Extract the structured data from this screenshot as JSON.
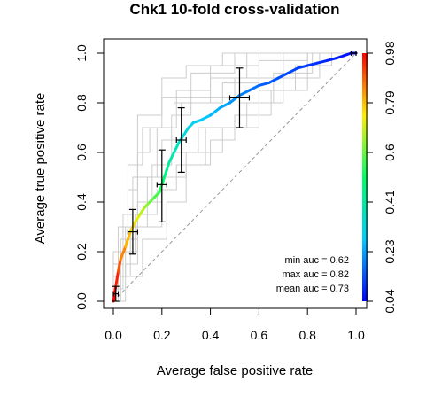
{
  "chart_data": {
    "type": "line",
    "title": "Chk1 10-fold cross-validation",
    "xlabel": "Average false positive rate",
    "ylabel": "Average true positive rate",
    "xlim": [
      0,
      1
    ],
    "ylim": [
      0,
      1
    ],
    "xticks": [
      "0.0",
      "0.2",
      "0.4",
      "0.6",
      "0.8",
      "1.0"
    ],
    "yticks": [
      "0.0",
      "0.2",
      "0.4",
      "0.6",
      "0.8",
      "1.0"
    ],
    "colorbar_ticks": [
      "0.04",
      "0.23",
      "0.41",
      "0.6",
      "0.79",
      "0.98"
    ],
    "colorbar_range": [
      0.04,
      0.98
    ],
    "annotations": [
      "min auc = 0.62",
      "max auc = 0.82",
      "mean auc = 0.73"
    ],
    "diagonal_reference": true,
    "colors": {
      "fold_curves": "#cccccc",
      "diagonal": "#999999",
      "error_bars": "#000000"
    },
    "average_curve": {
      "x": [
        0.0,
        0.01,
        0.02,
        0.03,
        0.05,
        0.07,
        0.09,
        0.11,
        0.13,
        0.15,
        0.17,
        0.19,
        0.2,
        0.21,
        0.22,
        0.23,
        0.25,
        0.27,
        0.29,
        0.31,
        0.33,
        0.36,
        0.4,
        0.44,
        0.48,
        0.52,
        0.56,
        0.6,
        0.64,
        0.68,
        0.72,
        0.76,
        0.8,
        0.84,
        0.88,
        0.92,
        0.95,
        0.98,
        1.0
      ],
      "y": [
        0.0,
        0.06,
        0.12,
        0.17,
        0.22,
        0.28,
        0.32,
        0.35,
        0.38,
        0.4,
        0.42,
        0.44,
        0.47,
        0.5,
        0.53,
        0.56,
        0.6,
        0.64,
        0.67,
        0.7,
        0.72,
        0.73,
        0.75,
        0.78,
        0.8,
        0.83,
        0.85,
        0.87,
        0.88,
        0.9,
        0.92,
        0.94,
        0.95,
        0.96,
        0.97,
        0.98,
        0.99,
        1.0,
        1.0
      ],
      "cutoff": [
        0.98,
        0.95,
        0.9,
        0.85,
        0.8,
        0.76,
        0.72,
        0.68,
        0.64,
        0.6,
        0.57,
        0.54,
        0.5,
        0.47,
        0.44,
        0.41,
        0.38,
        0.35,
        0.33,
        0.31,
        0.29,
        0.27,
        0.25,
        0.23,
        0.21,
        0.19,
        0.17,
        0.15,
        0.14,
        0.13,
        0.12,
        0.11,
        0.1,
        0.09,
        0.08,
        0.07,
        0.06,
        0.05,
        0.04
      ]
    },
    "error_bars": [
      {
        "x": 0.01,
        "y": 0.03,
        "ylo": 0.0,
        "yhi": 0.06,
        "xlo": 0.0,
        "xhi": 0.02
      },
      {
        "x": 0.08,
        "y": 0.28,
        "ylo": 0.19,
        "yhi": 0.37,
        "xlo": 0.06,
        "xhi": 0.1
      },
      {
        "x": 0.2,
        "y": 0.47,
        "ylo": 0.32,
        "yhi": 0.61,
        "xlo": 0.18,
        "xhi": 0.22
      },
      {
        "x": 0.28,
        "y": 0.65,
        "ylo": 0.52,
        "yhi": 0.78,
        "xlo": 0.26,
        "xhi": 0.3
      },
      {
        "x": 0.52,
        "y": 0.82,
        "ylo": 0.7,
        "yhi": 0.94,
        "xlo": 0.48,
        "xhi": 0.56
      },
      {
        "x": 0.99,
        "y": 1.0,
        "ylo": 1.0,
        "yhi": 1.0,
        "xlo": 0.98,
        "xhi": 1.0
      }
    ],
    "fold_curves": [
      {
        "points": [
          [
            0,
            0
          ],
          [
            0,
            0.1
          ],
          [
            0.05,
            0.1
          ],
          [
            0.05,
            0.3
          ],
          [
            0.1,
            0.3
          ],
          [
            0.1,
            0.6
          ],
          [
            0.15,
            0.6
          ],
          [
            0.15,
            0.7
          ],
          [
            0.25,
            0.7
          ],
          [
            0.25,
            0.8
          ],
          [
            0.4,
            0.8
          ],
          [
            0.4,
            0.9
          ],
          [
            0.55,
            0.9
          ],
          [
            0.55,
            1.0
          ],
          [
            1,
            1
          ]
        ]
      },
      {
        "points": [
          [
            0,
            0
          ],
          [
            0.03,
            0
          ],
          [
            0.03,
            0.2
          ],
          [
            0.1,
            0.2
          ],
          [
            0.1,
            0.4
          ],
          [
            0.2,
            0.4
          ],
          [
            0.2,
            0.5
          ],
          [
            0.3,
            0.5
          ],
          [
            0.3,
            0.6
          ],
          [
            0.45,
            0.6
          ],
          [
            0.45,
            0.7
          ],
          [
            0.6,
            0.7
          ],
          [
            0.6,
            0.85
          ],
          [
            0.75,
            0.85
          ],
          [
            0.75,
            0.95
          ],
          [
            0.9,
            0.95
          ],
          [
            0.9,
            1.0
          ],
          [
            1,
            1
          ]
        ]
      },
      {
        "points": [
          [
            0,
            0
          ],
          [
            0,
            0.15
          ],
          [
            0.04,
            0.15
          ],
          [
            0.04,
            0.35
          ],
          [
            0.08,
            0.35
          ],
          [
            0.08,
            0.5
          ],
          [
            0.18,
            0.5
          ],
          [
            0.18,
            0.7
          ],
          [
            0.26,
            0.7
          ],
          [
            0.26,
            0.85
          ],
          [
            0.4,
            0.85
          ],
          [
            0.4,
            0.95
          ],
          [
            0.6,
            0.95
          ],
          [
            0.6,
            1.0
          ],
          [
            1,
            1
          ]
        ]
      },
      {
        "points": [
          [
            0,
            0
          ],
          [
            0.02,
            0
          ],
          [
            0.02,
            0.1
          ],
          [
            0.12,
            0.1
          ],
          [
            0.12,
            0.25
          ],
          [
            0.22,
            0.25
          ],
          [
            0.22,
            0.4
          ],
          [
            0.3,
            0.4
          ],
          [
            0.3,
            0.55
          ],
          [
            0.4,
            0.55
          ],
          [
            0.4,
            0.65
          ],
          [
            0.5,
            0.65
          ],
          [
            0.5,
            0.75
          ],
          [
            0.65,
            0.75
          ],
          [
            0.65,
            0.85
          ],
          [
            0.8,
            0.85
          ],
          [
            0.8,
            1.0
          ],
          [
            1,
            1
          ]
        ]
      },
      {
        "points": [
          [
            0,
            0
          ],
          [
            0,
            0.2
          ],
          [
            0.06,
            0.2
          ],
          [
            0.06,
            0.45
          ],
          [
            0.1,
            0.45
          ],
          [
            0.1,
            0.75
          ],
          [
            0.2,
            0.75
          ],
          [
            0.2,
            0.9
          ],
          [
            0.3,
            0.9
          ],
          [
            0.3,
            0.95
          ],
          [
            0.45,
            0.95
          ],
          [
            0.45,
            1.0
          ],
          [
            1,
            1
          ]
        ]
      },
      {
        "points": [
          [
            0,
            0
          ],
          [
            0.05,
            0
          ],
          [
            0.05,
            0.15
          ],
          [
            0.1,
            0.15
          ],
          [
            0.1,
            0.3
          ],
          [
            0.2,
            0.3
          ],
          [
            0.2,
            0.45
          ],
          [
            0.25,
            0.45
          ],
          [
            0.25,
            0.6
          ],
          [
            0.35,
            0.6
          ],
          [
            0.35,
            0.7
          ],
          [
            0.55,
            0.7
          ],
          [
            0.55,
            0.8
          ],
          [
            0.7,
            0.8
          ],
          [
            0.7,
            0.9
          ],
          [
            0.85,
            0.9
          ],
          [
            0.85,
            1.0
          ],
          [
            1,
            1
          ]
        ]
      },
      {
        "points": [
          [
            0,
            0
          ],
          [
            0,
            0.1
          ],
          [
            0.07,
            0.1
          ],
          [
            0.07,
            0.3
          ],
          [
            0.14,
            0.3
          ],
          [
            0.14,
            0.5
          ],
          [
            0.2,
            0.5
          ],
          [
            0.2,
            0.65
          ],
          [
            0.28,
            0.65
          ],
          [
            0.28,
            0.8
          ],
          [
            0.45,
            0.8
          ],
          [
            0.45,
            0.88
          ],
          [
            0.6,
            0.88
          ],
          [
            0.6,
            0.97
          ],
          [
            0.8,
            0.97
          ],
          [
            0.8,
            1.0
          ],
          [
            1,
            1
          ]
        ]
      },
      {
        "points": [
          [
            0,
            0
          ],
          [
            0.03,
            0
          ],
          [
            0.03,
            0.25
          ],
          [
            0.1,
            0.25
          ],
          [
            0.1,
            0.4
          ],
          [
            0.16,
            0.4
          ],
          [
            0.16,
            0.55
          ],
          [
            0.24,
            0.55
          ],
          [
            0.24,
            0.75
          ],
          [
            0.32,
            0.75
          ],
          [
            0.32,
            0.82
          ],
          [
            0.5,
            0.82
          ],
          [
            0.5,
            0.9
          ],
          [
            0.7,
            0.9
          ],
          [
            0.7,
            1.0
          ],
          [
            1,
            1
          ]
        ]
      },
      {
        "points": [
          [
            0,
            0
          ],
          [
            0,
            0.05
          ],
          [
            0.04,
            0.05
          ],
          [
            0.04,
            0.2
          ],
          [
            0.09,
            0.2
          ],
          [
            0.09,
            0.35
          ],
          [
            0.18,
            0.35
          ],
          [
            0.18,
            0.45
          ],
          [
            0.26,
            0.45
          ],
          [
            0.26,
            0.55
          ],
          [
            0.38,
            0.55
          ],
          [
            0.38,
            0.7
          ],
          [
            0.52,
            0.7
          ],
          [
            0.52,
            0.8
          ],
          [
            0.66,
            0.8
          ],
          [
            0.66,
            0.92
          ],
          [
            0.82,
            0.92
          ],
          [
            0.82,
            1.0
          ],
          [
            1,
            1
          ]
        ]
      },
      {
        "points": [
          [
            0,
            0
          ],
          [
            0.02,
            0
          ],
          [
            0.02,
            0.3
          ],
          [
            0.06,
            0.3
          ],
          [
            0.06,
            0.55
          ],
          [
            0.12,
            0.55
          ],
          [
            0.12,
            0.7
          ],
          [
            0.2,
            0.7
          ],
          [
            0.2,
            0.82
          ],
          [
            0.32,
            0.82
          ],
          [
            0.32,
            0.92
          ],
          [
            0.5,
            0.92
          ],
          [
            0.5,
            1.0
          ],
          [
            1,
            1
          ]
        ]
      }
    ]
  }
}
